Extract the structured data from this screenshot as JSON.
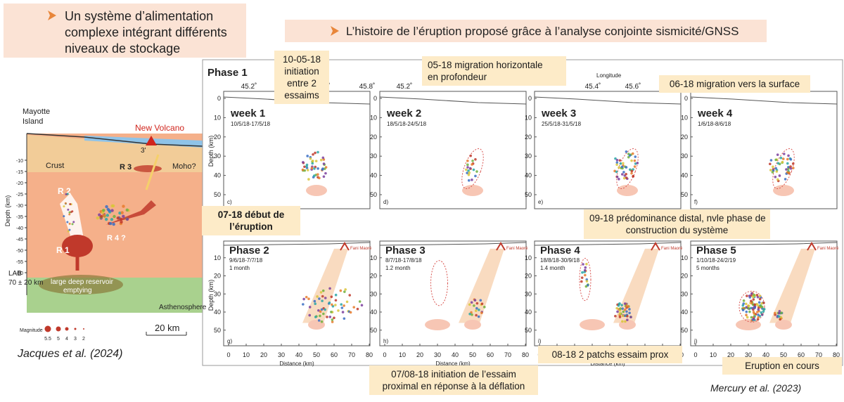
{
  "left_box": {
    "lines": [
      "Un système d’alimentation",
      "complexe intégrant différents",
      "niveaux de stockage"
    ]
  },
  "right_title": "L’histoire de l’éruption proposé grâce à l’analyse conjointe sismicité/GNSS",
  "left_figure": {
    "island": [
      "Mayotte",
      "Island"
    ],
    "volcano": "New Volcano",
    "crust": "Crust",
    "moho": "Moho?",
    "r3": "R 3",
    "r2": "R 2",
    "r1": "R 1",
    "r4": "R 4 ?",
    "r3p": "3'",
    "lab": [
      "LAB",
      "70 ± 20 km"
    ],
    "reservoir": [
      "large deep reservoir",
      "emptying"
    ],
    "asthenosphere": "Asthenosphere",
    "depth_label": "Depth (km)",
    "depth_ticks": [
      -10,
      -15,
      -20,
      -25,
      -30,
      -35,
      -40,
      -45,
      -50,
      -55,
      -60
    ],
    "magnitude_label": "Magnitude",
    "magnitudes": [
      5.5,
      5,
      4,
      3,
      2
    ],
    "scale": "20 km",
    "citation": "Jacques et al. (2024)"
  },
  "right_figure": {
    "phase1": "Phase 1",
    "longitude_label": "Longitude",
    "longitude_ticks": [
      "45.2˚",
      "6˚",
      "45.8˚",
      "45.2˚",
      "45.4˚",
      "45.6˚"
    ],
    "depth_label": "Depth (km)",
    "top_depth_ticks": [
      0,
      10,
      20,
      30,
      40,
      50
    ],
    "bottom_depth_ticks": [
      10,
      20,
      30,
      40,
      50
    ],
    "distance_ticks": [
      0,
      10,
      20,
      30,
      40,
      50,
      60,
      70,
      80
    ],
    "distance_label": "Distance (km)",
    "vent_label": "Fani Maoré",
    "top_panels": [
      {
        "title": "week 1",
        "dates": "10/5/18-17/5/18",
        "letter": "c)"
      },
      {
        "title": "week 2",
        "dates": "18/5/18-24/5/18",
        "letter": "d)"
      },
      {
        "title": "week 3",
        "dates": "25/5/18-31/5/18",
        "letter": "e)"
      },
      {
        "title": "week 4",
        "dates": "1/6/18-8/6/18",
        "letter": "f)"
      }
    ],
    "bottom_panels": [
      {
        "title": "Phase 2",
        "dates": "9/6/18-7/7/18",
        "duration": "1 month",
        "letter": "g)"
      },
      {
        "title": "Phase 3",
        "dates": "8/7/18-17/8/18",
        "duration": "1.2 month",
        "letter": "h)"
      },
      {
        "title": "Phase 4",
        "dates": "18/8/18-30/9/18",
        "duration": "1.4 month",
        "letter": "i)"
      },
      {
        "title": "Phase 5",
        "dates": "1/10/18-24/2/19",
        "duration": "5 months",
        "letter": "j)"
      }
    ],
    "citation": "Mercury et al. (2023)"
  },
  "annotations": [
    {
      "lines": [
        "10-05-18",
        "initiation",
        "entre 2",
        "essaims"
      ]
    },
    {
      "lines": [
        "05-18 migration horizontale",
        "en profondeur"
      ]
    },
    {
      "lines": [
        "06-18 migration vers la surface"
      ]
    },
    {
      "lines": [
        "07-18 début de",
        "l’éruption"
      ]
    },
    {
      "lines": [
        "09-18 prédominance distal, nvle phase de",
        "construction du système"
      ]
    },
    {
      "lines": [
        "07/08-18 initiation de l’essaim",
        "proximal en réponse à la déflation"
      ]
    },
    {
      "lines": [
        "08-18 2 patchs essaim prox"
      ]
    },
    {
      "lines": [
        "Eruption en cours"
      ]
    }
  ]
}
